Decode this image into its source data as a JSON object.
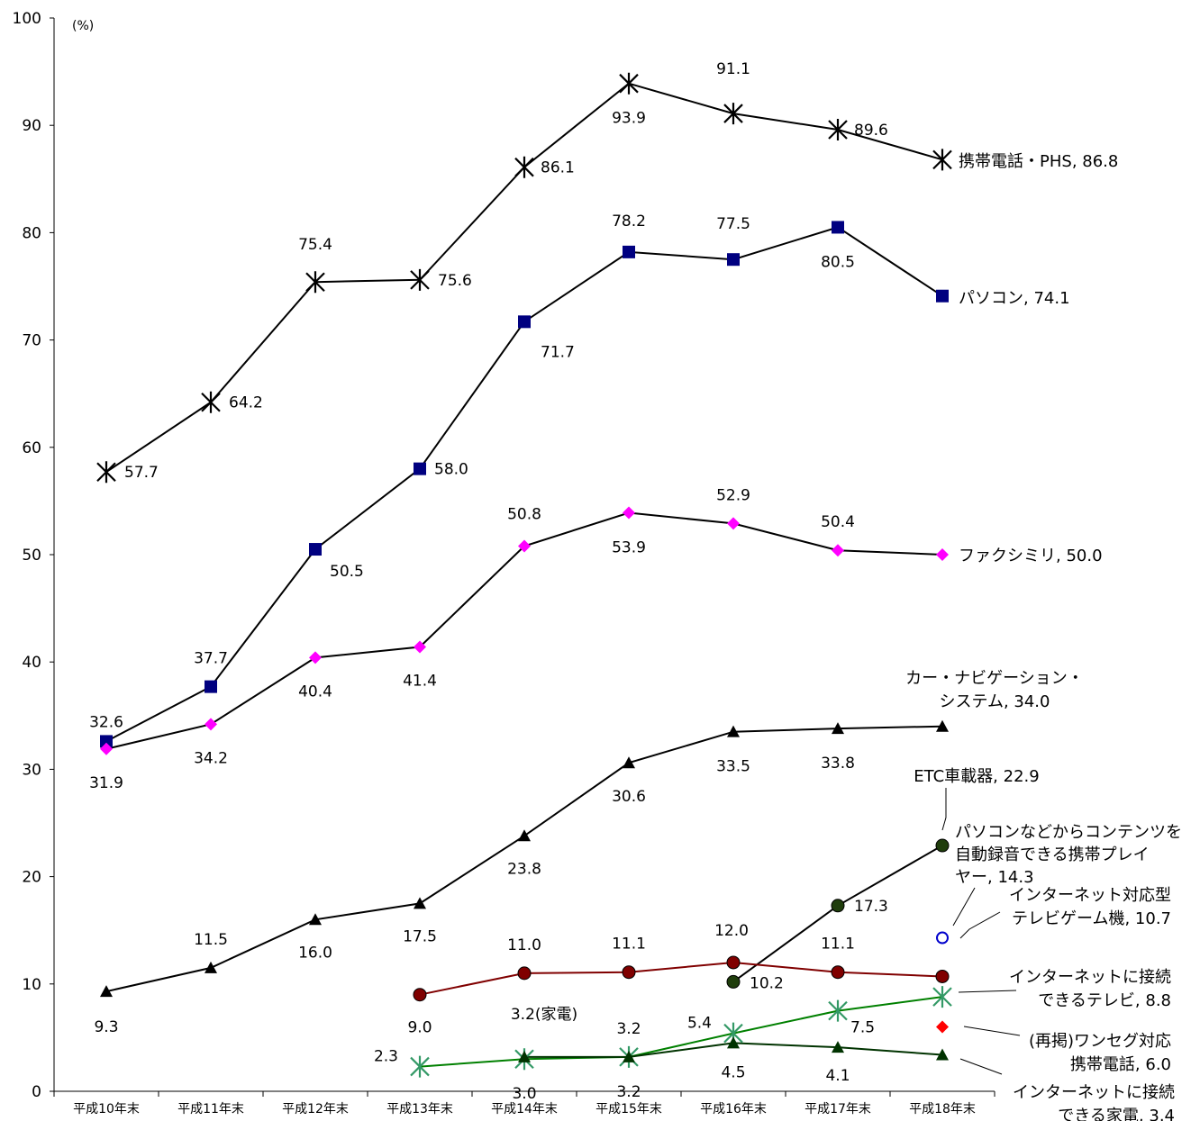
{
  "chart_data": {
    "type": "line",
    "title": "",
    "xlabel": "",
    "ylabel": "(%)",
    "ylim": [
      0,
      100
    ],
    "yticks": [
      "0",
      "10",
      "20",
      "30",
      "40",
      "50",
      "60",
      "70",
      "80",
      "90",
      "100"
    ],
    "grid": false,
    "categories": [
      "平成10年末",
      "平成11年末",
      "平成12年末",
      "平成13年末",
      "平成14年末",
      "平成15年末",
      "平成16年末",
      "平成17年末",
      "平成18年末"
    ],
    "series": [
      {
        "id": "mobile",
        "name": "携帯電話・PHS, 86.8",
        "values": [
          57.7,
          64.2,
          75.4,
          75.6,
          86.1,
          93.9,
          91.1,
          89.6,
          86.8
        ],
        "labels": [
          "57.7",
          "64.2",
          "75.4",
          "75.6",
          "86.1",
          "93.9",
          "91.1",
          "89.6",
          ""
        ],
        "color": "#000000",
        "marker": "star"
      },
      {
        "id": "pc",
        "name": "パソコン, 74.1",
        "values": [
          32.6,
          37.7,
          50.5,
          58.0,
          71.7,
          78.2,
          77.5,
          80.5,
          74.1
        ],
        "labels": [
          "32.6",
          "37.7",
          "50.5",
          "58.0",
          "71.7",
          "78.2",
          "77.5",
          "80.5",
          ""
        ],
        "color": "#000000",
        "marker": "square",
        "marker_color": "#000080"
      },
      {
        "id": "fax",
        "name": "ファクシミリ, 50.0",
        "values": [
          31.9,
          34.2,
          40.4,
          41.4,
          50.8,
          53.9,
          52.9,
          50.4,
          50.0
        ],
        "labels": [
          "31.9",
          "34.2",
          "40.4",
          "41.4",
          "50.8",
          "53.9",
          "52.9",
          "50.4",
          ""
        ],
        "color": "#000000",
        "marker": "diamond",
        "marker_color": "#ff00ff"
      },
      {
        "id": "carnav",
        "name": "カー・ナビゲーション・システム, 34.0",
        "name_lines": [
          "カー・ナビゲーション・",
          "システム, 34.0"
        ],
        "values": [
          9.3,
          11.5,
          16.0,
          17.5,
          23.8,
          30.6,
          33.5,
          33.8,
          34.0
        ],
        "labels": [
          "9.3",
          "11.5",
          "16.0",
          "17.5",
          "23.8",
          "30.6",
          "33.5",
          "33.8",
          ""
        ],
        "color": "#000000",
        "marker": "triangle"
      },
      {
        "id": "etc",
        "name": "ETC車載器, 22.9",
        "values": [
          null,
          null,
          null,
          null,
          null,
          null,
          10.2,
          17.3,
          22.9
        ],
        "labels": [
          "",
          "",
          "",
          "",
          "",
          "",
          "10.2",
          "17.3",
          ""
        ],
        "color": "#000000",
        "marker": "circle",
        "marker_color": "#1f3d0c"
      },
      {
        "id": "player",
        "name": "パソコンなどからコンテンツを自動録音できる携帯プレイヤー, 14.3",
        "name_lines": [
          "パソコンなどからコンテンツを",
          "自動録音できる携帯プレイ",
          "ヤー, 14.3"
        ],
        "values": [
          null,
          null,
          null,
          null,
          null,
          null,
          null,
          null,
          14.3
        ],
        "labels": [
          "",
          "",
          "",
          "",
          "",
          "",
          "",
          "",
          ""
        ],
        "color": "#0000cc",
        "marker": "open-circle"
      },
      {
        "id": "game",
        "name": "インターネット対応型テレビゲーム機, 10.7",
        "name_lines": [
          "インターネット対応型",
          "テレビゲーム機, 10.7"
        ],
        "values": [
          null,
          null,
          null,
          9.0,
          11.0,
          11.1,
          12.0,
          11.1,
          10.7
        ],
        "labels": [
          "",
          "",
          "",
          "9.0",
          "11.0",
          "11.1",
          "12.0",
          "11.1",
          ""
        ],
        "color": "#800000",
        "marker": "circle",
        "marker_color": "#800000"
      },
      {
        "id": "tv",
        "name": "インターネットに接続できるテレビ, 8.8",
        "name_lines": [
          "インターネットに接続",
          "できるテレビ, 8.8"
        ],
        "values": [
          null,
          null,
          null,
          2.3,
          3.0,
          3.2,
          5.4,
          7.5,
          8.8
        ],
        "labels": [
          "",
          "",
          "",
          "2.3",
          "3.0",
          "3.2",
          "5.4",
          "7.5",
          ""
        ],
        "color": "#008000",
        "marker": "star",
        "marker_color": "#339966"
      },
      {
        "id": "oneseg",
        "name": "(再掲)ワンセグ対応携帯電話, 6.0",
        "name_lines": [
          "(再掲)ワンセグ対応",
          "携帯電話, 6.0"
        ],
        "values": [
          null,
          null,
          null,
          null,
          null,
          null,
          null,
          null,
          6.0
        ],
        "labels": [
          "",
          "",
          "",
          "",
          "",
          "",
          "",
          "",
          ""
        ],
        "color": "#ff0000",
        "marker": "diamond",
        "marker_color": "#ff0000"
      },
      {
        "id": "appliance",
        "name": "インターネットに接続できる家電, 3.4",
        "name_lines": [
          "インターネットに接続",
          "できる家電, 3.4"
        ],
        "values": [
          null,
          null,
          null,
          null,
          3.2,
          3.2,
          4.5,
          4.1,
          3.4
        ],
        "labels": [
          "",
          "",
          "",
          "",
          "3.2(家電)",
          "3.2",
          "4.5",
          "4.1",
          ""
        ],
        "color": "#003300",
        "marker": "triangle",
        "marker_color": "#003300"
      }
    ]
  }
}
